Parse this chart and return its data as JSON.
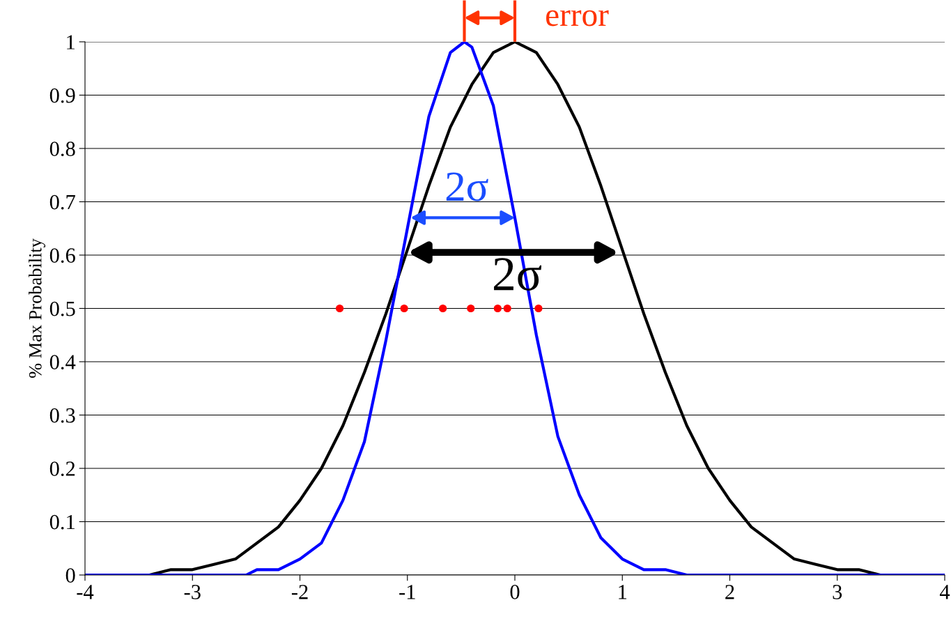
{
  "chart_data": {
    "type": "line",
    "ylabel": "% Max Probability",
    "xlim": [
      -4,
      4
    ],
    "xticks": [
      -4,
      -3,
      -2,
      -1,
      0,
      1,
      2,
      3,
      4
    ],
    "ylim": [
      0,
      1
    ],
    "yticks": [
      0,
      0.1,
      0.2,
      0.3,
      0.4,
      0.5,
      0.6,
      0.7,
      0.8,
      0.9,
      1
    ],
    "grid": "y",
    "line_style": "solid",
    "series": [
      {
        "color": "#000000",
        "x": [
          -4,
          -3.8,
          -3.6,
          -3.4,
          -3.2,
          -3,
          -2.8,
          -2.6,
          -2.4,
          -2.2,
          -2,
          -1.8,
          -1.6,
          -1.4,
          -1.2,
          -1,
          -0.8,
          -0.6,
          -0.4,
          -0.2,
          0,
          0.2,
          0.4,
          0.6,
          0.8,
          1,
          1.2,
          1.4,
          1.6,
          1.8,
          2,
          2.2,
          2.4,
          2.6,
          2.8,
          3,
          3.2,
          3.4,
          3.6,
          3.8,
          4
        ],
        "values": [
          0,
          0,
          0,
          0,
          0.01,
          0.01,
          0.02,
          0.03,
          0.06,
          0.09,
          0.14,
          0.2,
          0.28,
          0.38,
          0.49,
          0.61,
          0.73,
          0.84,
          0.92,
          0.98,
          1,
          0.98,
          0.92,
          0.84,
          0.73,
          0.61,
          0.49,
          0.38,
          0.28,
          0.2,
          0.14,
          0.09,
          0.06,
          0.03,
          0.02,
          0.01,
          0.01,
          0,
          0,
          0,
          0
        ]
      },
      {
        "color": "#0000ff",
        "x": [
          -4,
          -2.5,
          -2.4,
          -2.2,
          -2,
          -1.8,
          -1.6,
          -1.4,
          -1.2,
          -1,
          -0.8,
          -0.6,
          -0.47,
          -0.4,
          -0.2,
          0,
          0.2,
          0.4,
          0.6,
          0.8,
          1,
          1.2,
          1.4,
          1.6,
          4
        ],
        "values": [
          0,
          0,
          0.01,
          0.01,
          0.03,
          0.06,
          0.14,
          0.25,
          0.44,
          0.65,
          0.86,
          0.98,
          1,
          0.99,
          0.88,
          0.67,
          0.45,
          0.26,
          0.15,
          0.07,
          0.03,
          0.01,
          0.01,
          0,
          0
        ]
      },
      {
        "type": "scatter",
        "color": "#ff0000",
        "x": [
          -1.63,
          -1.03,
          -0.67,
          -0.41,
          -0.16,
          -0.07,
          0.22
        ],
        "values": [
          0.5,
          0.5,
          0.5,
          0.5,
          0.5,
          0.5,
          0.5
        ]
      }
    ],
    "annotations": [
      "error",
      "2σ",
      "2σ"
    ]
  }
}
